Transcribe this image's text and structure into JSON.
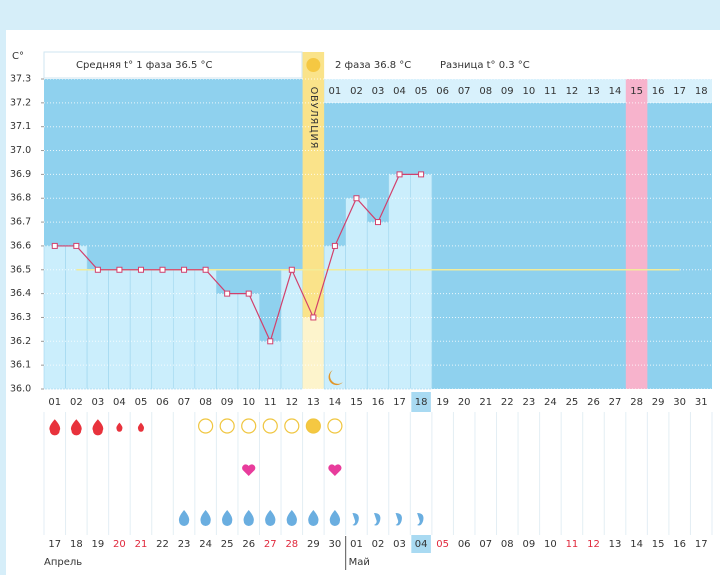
{
  "unit": "C°",
  "phase1": "Средняя t° 1 фаза 36.5 °C",
  "phase2": "2 фаза 36.8 °C",
  "difference": "Разница t° 0.3 °C",
  "ovulation": "ОВУЛЯЦИЯ",
  "chart_data": {
    "type": "line",
    "categories": [
      "01",
      "02",
      "03",
      "04",
      "05",
      "06",
      "07",
      "08",
      "09",
      "10",
      "11",
      "12",
      "13",
      "14",
      "15",
      "16",
      "17",
      "18",
      "19",
      "20",
      "21",
      "22",
      "23",
      "24",
      "25",
      "26",
      "27",
      "28",
      "29",
      "30",
      "31"
    ],
    "values": [
      36.6,
      36.6,
      36.5,
      36.5,
      36.5,
      36.5,
      36.5,
      36.5,
      36.4,
      36.4,
      36.2,
      36.5,
      36.3,
      36.6,
      36.8,
      36.7,
      36.9,
      36.9,
      null,
      null,
      null,
      null,
      null,
      null,
      null,
      null,
      null,
      null,
      null,
      null,
      null
    ],
    "color": "#d2406c",
    "cover_line": 36.5,
    "ylim": [
      36,
      37.3
    ],
    "yticks": [
      {
        "value": 36,
        "label": "36.0"
      },
      {
        "value": 36.1,
        "label": "36.1"
      },
      {
        "value": 36.2,
        "label": "36.2"
      },
      {
        "value": 36.3,
        "label": "36.3"
      },
      {
        "value": 36.4,
        "label": "36.4"
      },
      {
        "value": 36.5,
        "label": "36.5"
      },
      {
        "value": 36.6,
        "label": "36.6"
      },
      {
        "value": 36.7,
        "label": "36.7"
      },
      {
        "value": 36.8,
        "label": "36.8"
      },
      {
        "value": 36.9,
        "label": "36.9"
      },
      {
        "value": 37,
        "label": "37.0"
      },
      {
        "value": 37.1,
        "label": "37.1"
      },
      {
        "value": 37.2,
        "label": "37.2"
      },
      {
        "value": 37.3,
        "label": "37.3"
      }
    ],
    "phase2_days": [
      "01",
      "02",
      "03",
      "04",
      "05",
      "06",
      "07",
      "08",
      "09",
      "10",
      "11",
      "12",
      "13",
      "14",
      "15",
      "16",
      "17",
      "18"
    ],
    "dates": [
      "17",
      "18",
      "19",
      "20",
      "21",
      "22",
      "23",
      "24",
      "25",
      "26",
      "27",
      "28",
      "29",
      "30",
      "01",
      "02",
      "03",
      "04",
      "05",
      "06",
      "07",
      "08",
      "09",
      "10",
      "11",
      "12",
      "13",
      "14",
      "15",
      "16",
      "17"
    ],
    "months": [
      "Апрель",
      "Май"
    ]
  }
}
